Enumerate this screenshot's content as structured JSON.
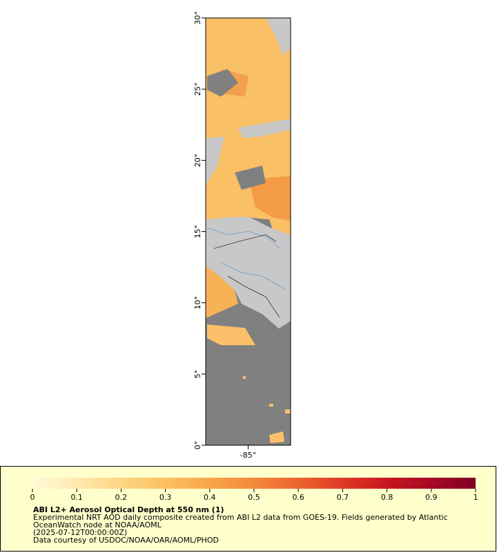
{
  "map": {
    "xlim": [
      -88,
      -82
    ],
    "ylim": [
      0,
      30
    ],
    "xticks": [
      {
        "value": -85,
        "label": "-85°"
      }
    ],
    "yticks": [
      {
        "value": 0,
        "label": "0°"
      },
      {
        "value": 5,
        "label": "5°"
      },
      {
        "value": 10,
        "label": "10°"
      },
      {
        "value": 15,
        "label": "15°"
      },
      {
        "value": 20,
        "label": "20°"
      },
      {
        "value": 25,
        "label": "25°"
      },
      {
        "value": 30,
        "label": "30°"
      }
    ]
  },
  "colorbar": {
    "range": [
      0,
      1
    ],
    "ticks": [
      0,
      0.1,
      0.2,
      0.3,
      0.4,
      0.5,
      0.6,
      0.7,
      0.8,
      0.9,
      1
    ],
    "colors": [
      "#fffad8",
      "#ffe9b0",
      "#fdd585",
      "#fbc062",
      "#f8a64a",
      "#f4893a",
      "#ec6530",
      "#de3a26",
      "#c8161f",
      "#a50a25",
      "#800026"
    ]
  },
  "caption": {
    "title": "ABI L2+ Aerosol Optical Depth at 550 nm (1)",
    "lines": [
      "Experimental NRT AOD daily composite created from ABI L2 data from GOES-19. Fields generated by Atlantic",
      "OceanWatch node at NOAA/AOML",
      "(2025-07-12T00:00:00Z)",
      "Data courtesy of USDOC/NOAA/OAR/AOML/PHOD"
    ]
  }
}
